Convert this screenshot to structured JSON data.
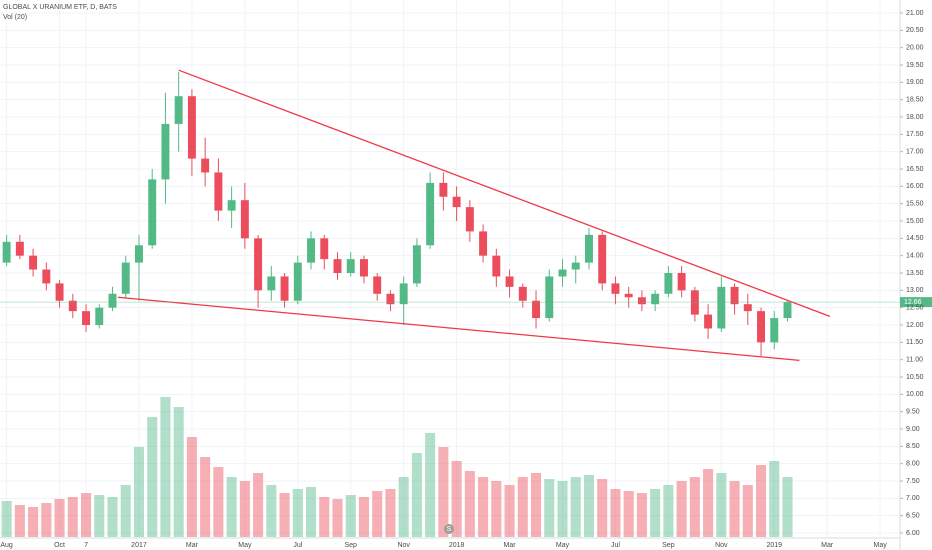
{
  "chart_data": {
    "type": "candlestick",
    "title": "GLOBAL X URANIUM ETF, D, BATS",
    "subtitle": "Vol (20)",
    "categories": [
      "Aug",
      null,
      null,
      null,
      "Oct",
      null,
      "7",
      null,
      null,
      null,
      "2017",
      null,
      null,
      null,
      "Mar",
      null,
      null,
      null,
      "May",
      null,
      null,
      null,
      "Jul",
      null,
      null,
      null,
      "Sep",
      null,
      null,
      null,
      "Nov",
      null,
      null,
      null,
      "2018",
      null,
      null,
      null,
      "Mar",
      null,
      null,
      null,
      "May",
      null,
      null,
      null,
      "Jul",
      null,
      null,
      null,
      "Sep",
      null,
      null,
      null,
      "Nov",
      null,
      null,
      null,
      "2019",
      null,
      null,
      null,
      "Mar",
      null,
      null,
      null,
      "May",
      null
    ],
    "open": [
      13.8,
      14.4,
      14.0,
      13.6,
      13.2,
      12.7,
      12.4,
      12.0,
      12.5,
      12.9,
      13.8,
      14.3,
      16.2,
      17.8,
      18.6,
      16.8,
      16.4,
      15.3,
      15.6,
      14.5,
      13.0,
      13.4,
      12.7,
      13.8,
      14.5,
      13.9,
      13.5,
      13.9,
      13.4,
      12.9,
      12.6,
      13.2,
      14.3,
      16.1,
      15.7,
      15.4,
      14.7,
      14.0,
      13.4,
      13.1,
      12.7,
      12.2,
      13.4,
      13.6,
      13.8,
      14.6,
      13.2,
      12.9,
      12.8,
      12.6,
      12.9,
      13.5,
      13.0,
      12.3,
      11.9,
      13.1,
      12.6,
      12.4,
      11.5,
      12.2,
      null,
      null,
      null,
      null,
      null,
      null,
      null,
      null
    ],
    "high": [
      14.6,
      14.6,
      14.2,
      13.8,
      13.3,
      12.9,
      12.6,
      12.6,
      13.1,
      14.0,
      14.6,
      16.5,
      18.7,
      19.3,
      18.8,
      17.4,
      16.8,
      16.0,
      16.1,
      14.6,
      13.7,
      13.5,
      14.0,
      14.7,
      14.6,
      14.1,
      14.1,
      14.0,
      13.5,
      13.0,
      13.4,
      14.5,
      16.4,
      16.4,
      16.0,
      15.6,
      14.9,
      14.2,
      13.6,
      13.2,
      13.0,
      13.6,
      13.9,
      14.0,
      14.8,
      14.7,
      13.4,
      13.1,
      13.0,
      13.0,
      13.7,
      13.7,
      13.1,
      12.6,
      13.4,
      13.2,
      12.9,
      12.5,
      12.4,
      12.7,
      null,
      null,
      null,
      null,
      null,
      null,
      null,
      null
    ],
    "low": [
      13.7,
      13.9,
      13.4,
      13.0,
      12.5,
      12.2,
      11.8,
      11.9,
      12.4,
      12.8,
      12.7,
      14.2,
      15.5,
      17.0,
      16.3,
      16.0,
      15.0,
      14.8,
      14.2,
      12.5,
      12.7,
      12.5,
      12.6,
      13.6,
      13.6,
      13.3,
      13.4,
      13.2,
      12.7,
      12.4,
      12.0,
      13.1,
      14.2,
      15.3,
      15.0,
      14.4,
      13.8,
      13.1,
      12.8,
      12.5,
      11.9,
      12.1,
      13.1,
      13.2,
      13.6,
      13.0,
      12.6,
      12.5,
      12.4,
      12.4,
      12.8,
      12.8,
      12.1,
      11.6,
      11.8,
      12.3,
      12.0,
      11.1,
      11.3,
      12.1,
      null,
      null,
      null,
      null,
      null,
      null,
      null,
      null
    ],
    "close": [
      14.4,
      14.0,
      13.6,
      13.2,
      12.7,
      12.4,
      12.0,
      12.5,
      12.9,
      13.8,
      14.3,
      16.2,
      17.8,
      18.6,
      16.8,
      16.4,
      15.3,
      15.6,
      14.5,
      13.0,
      13.4,
      12.7,
      13.8,
      14.5,
      13.9,
      13.5,
      13.9,
      13.4,
      12.9,
      12.6,
      13.2,
      14.3,
      16.1,
      15.7,
      15.4,
      14.7,
      14.0,
      13.4,
      13.1,
      12.7,
      12.2,
      13.4,
      13.6,
      13.8,
      14.6,
      13.2,
      12.9,
      12.8,
      12.6,
      12.9,
      13.5,
      13.0,
      12.3,
      11.9,
      13.1,
      12.6,
      12.4,
      11.5,
      12.2,
      12.66,
      null,
      null,
      null,
      null,
      null,
      null,
      null,
      null
    ],
    "volume": [
      180,
      160,
      150,
      170,
      190,
      200,
      220,
      210,
      200,
      260,
      450,
      600,
      700,
      650,
      500,
      400,
      350,
      300,
      280,
      320,
      260,
      220,
      240,
      250,
      200,
      190,
      210,
      200,
      230,
      240,
      300,
      420,
      520,
      450,
      380,
      330,
      300,
      280,
      260,
      300,
      320,
      290,
      280,
      300,
      310,
      290,
      240,
      230,
      220,
      240,
      260,
      280,
      300,
      340,
      320,
      280,
      260,
      360,
      380,
      300,
      null,
      null,
      null,
      null,
      null,
      null,
      null,
      null
    ],
    "up_color": "#53b987",
    "down_color": "#eb4d5c",
    "trendline_color": "#f23645",
    "trendlines": [
      {
        "x": [
          13,
          62.2
        ],
        "y": [
          19.35,
          12.25
        ]
      },
      {
        "x": [
          8.4,
          59.9
        ],
        "y": [
          12.8,
          10.98
        ]
      }
    ],
    "ylim": [
      6,
      21
    ],
    "yticks": [
      {
        "value": 21,
        "label": "21.00"
      },
      {
        "value": 20.5,
        "label": "20.50"
      },
      {
        "value": 20,
        "label": "20.00"
      },
      {
        "value": 19.5,
        "label": "19.50"
      },
      {
        "value": 19,
        "label": "19.00"
      },
      {
        "value": 18.5,
        "label": "18.50"
      },
      {
        "value": 18,
        "label": "18.00"
      },
      {
        "value": 17.5,
        "label": "17.50"
      },
      {
        "value": 17,
        "label": "17.00"
      },
      {
        "value": 16.5,
        "label": "16.50"
      },
      {
        "value": 16,
        "label": "16.00"
      },
      {
        "value": 15.5,
        "label": "15.50"
      },
      {
        "value": 15,
        "label": "15.00"
      },
      {
        "value": 14.5,
        "label": "14.50"
      },
      {
        "value": 14,
        "label": "14.00"
      },
      {
        "value": 13.5,
        "label": "13.50"
      },
      {
        "value": 13,
        "label": "13.00"
      },
      {
        "value": 12.5,
        "label": "12.50"
      },
      {
        "value": 12,
        "label": "12.00"
      },
      {
        "value": 11.5,
        "label": "11.50"
      },
      {
        "value": 11,
        "label": "11.00"
      },
      {
        "value": 10.5,
        "label": "10.50"
      },
      {
        "value": 10,
        "label": "10.00"
      },
      {
        "value": 9.5,
        "label": "9.50"
      },
      {
        "value": 9,
        "label": "9.00"
      },
      {
        "value": 8.5,
        "label": "8.50"
      },
      {
        "value": 8,
        "label": "8.00"
      },
      {
        "value": 7.5,
        "label": "7.50"
      },
      {
        "value": 7,
        "label": "7.00"
      },
      {
        "value": 6.5,
        "label": "6.50"
      },
      {
        "value": 6,
        "label": "6.00"
      }
    ],
    "grid": true
  }
}
